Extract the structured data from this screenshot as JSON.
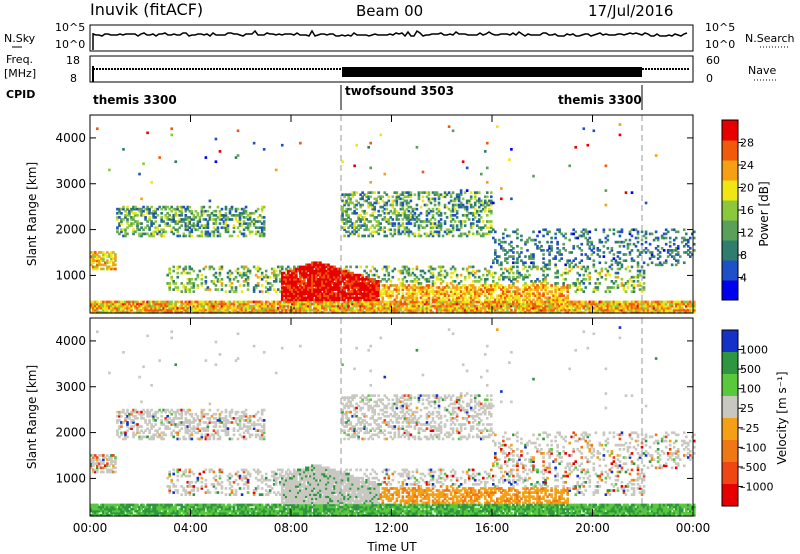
{
  "header": {
    "station": "Inuvik (fitACF)",
    "beam": "Beam 00",
    "date": "17/Jul/2016"
  },
  "top_panels": {
    "nsky": {
      "label": "N.Sky",
      "ticks": [
        "10^5",
        "10^0"
      ],
      "right_label": "N.Search",
      "right_ticks": [
        "10^5",
        "10^0"
      ]
    },
    "freq": {
      "label_line1": "Freq.",
      "label_line2": "[MHz]",
      "ticks": [
        "18",
        "8"
      ],
      "right_label": "Nave",
      "right_ticks": [
        "60",
        "0"
      ]
    },
    "cpid": {
      "label": "CPID",
      "segments": [
        {
          "name": "themis 3300",
          "start": 0,
          "end": 10
        },
        {
          "name": "twofsound 3503",
          "start": 10,
          "end": 22
        },
        {
          "name": "themis 3300",
          "start": 22,
          "end": 24
        }
      ]
    }
  },
  "chart_data": [
    {
      "type": "heatmap",
      "variable": "Power",
      "ylabel": "Slant Range [km]",
      "xlabel": "",
      "x_ticks": [
        "00:00",
        "04:00",
        "08:00",
        "12:00",
        "16:00",
        "20:00",
        "00:00"
      ],
      "xlim": [
        0,
        24
      ],
      "ylim": [
        180,
        4500
      ],
      "y_ticks": [
        1000,
        2000,
        3000,
        4000
      ],
      "colorbar": {
        "label": "Power [dB]",
        "ticks": [
          "4",
          "8",
          "12",
          "16",
          "20",
          "24",
          "28"
        ],
        "range": [
          0,
          30
        ],
        "colors": [
          "#0000ee",
          "#1e50c8",
          "#2e7d6e",
          "#5aa05a",
          "#8cc83c",
          "#f0e614",
          "#f5a014",
          "#f05a0a",
          "#e60000"
        ]
      },
      "features": [
        {
          "description": "near range ground scatter band",
          "range_km": [
            200,
            600
          ],
          "time_h": [
            0,
            24
          ],
          "power_db": 18
        },
        {
          "description": "high power patch",
          "range_km": [
            200,
            1300
          ],
          "time_h": [
            7.5,
            11.5
          ],
          "power_db": 30
        },
        {
          "description": "far range scatter",
          "range_km": [
            1700,
            2600
          ],
          "time_h": [
            1,
            16
          ],
          "power_db": 10
        }
      ]
    },
    {
      "type": "heatmap",
      "variable": "Velocity",
      "ylabel": "Slant Range [km]",
      "xlabel": "Time UT",
      "x_ticks": [
        "00:00",
        "04:00",
        "08:00",
        "12:00",
        "16:00",
        "20:00",
        "00:00"
      ],
      "xlim": [
        0,
        24
      ],
      "ylim": [
        180,
        4500
      ],
      "y_ticks": [
        1000,
        2000,
        3000,
        4000
      ],
      "colorbar": {
        "label": "Velocity [m s⁻¹]",
        "ticks": [
          "1000",
          "500",
          "100",
          "25",
          "–25",
          "–100",
          "–500",
          "–1000"
        ],
        "colors": [
          "#1432c8",
          "#2e9641",
          "#5ac83c",
          "#c8c8c0",
          "#f5a014",
          "#f07814",
          "#f04614",
          "#e60000"
        ]
      },
      "features": [
        {
          "description": "ground scatter (grey)",
          "range_km": [
            200,
            2500
          ],
          "time_h": [
            0,
            24
          ],
          "velocity": 0
        },
        {
          "description": "orange near range",
          "range_km": [
            200,
            800
          ],
          "time_h": [
            10,
            18
          ],
          "velocity": -150
        }
      ]
    }
  ]
}
